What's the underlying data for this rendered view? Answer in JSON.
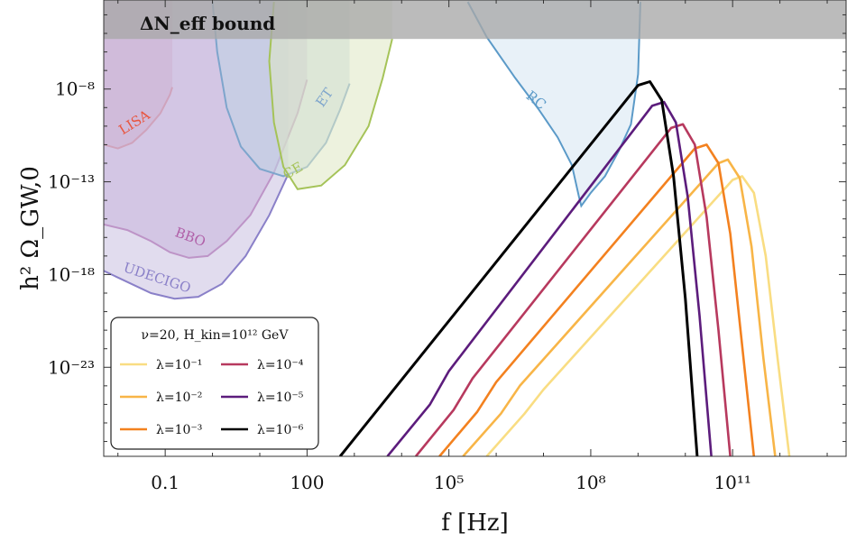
{
  "chart_data": {
    "type": "line",
    "xscale": "log",
    "yscale": "log",
    "xlim_log10": [
      -2.3,
      13.4
    ],
    "ylim_log10": [
      -27.8,
      -3.2
    ],
    "xlabel": "f [Hz]",
    "ylabel": "h² Ω_GW,0",
    "x_ticks": [
      {
        "label": "0.1",
        "log10": -1
      },
      {
        "label": "100",
        "log10": 2
      },
      {
        "label": "10⁵",
        "log10": 5
      },
      {
        "label": "10⁸",
        "log10": 8
      },
      {
        "label": "10¹¹",
        "log10": 11
      }
    ],
    "y_ticks": [
      {
        "label": "10⁻⁸",
        "log10": -8
      },
      {
        "label": "10⁻¹³",
        "log10": -13
      },
      {
        "label": "10⁻¹⁸",
        "log10": -18
      },
      {
        "label": "10⁻²³",
        "log10": -23
      }
    ],
    "band": {
      "label": "ΔN_eff bound",
      "y_log10_min": -5.3,
      "color": "#a8a8a8"
    },
    "sensitivity_regions": [
      {
        "name": "LISA",
        "color": "#e8553f",
        "fill": "#e49aa6",
        "points": [
          [
            -2.3,
            -11.0
          ],
          [
            -2.0,
            -11.2
          ],
          [
            -1.7,
            -10.9
          ],
          [
            -1.4,
            -10.2
          ],
          [
            -1.1,
            -9.3
          ],
          [
            -0.9,
            -8.3
          ],
          [
            -0.85,
            -7.9
          ]
        ]
      },
      {
        "name": "BBO",
        "color": "#b060a8",
        "fill": "#c9a8d6",
        "points": [
          [
            -2.3,
            -15.3
          ],
          [
            -1.8,
            -15.6
          ],
          [
            -1.3,
            -16.2
          ],
          [
            -0.9,
            -16.8
          ],
          [
            -0.5,
            -17.1
          ],
          [
            -0.1,
            -17.0
          ],
          [
            0.3,
            -16.2
          ],
          [
            0.8,
            -14.8
          ],
          [
            1.3,
            -12.5
          ],
          [
            1.8,
            -9.3
          ],
          [
            2.0,
            -7.5
          ]
        ]
      },
      {
        "name": "UDECIGO",
        "color": "#8a80c8",
        "fill": "#c8c0e0",
        "points": [
          [
            -2.3,
            -17.8
          ],
          [
            -1.8,
            -18.4
          ],
          [
            -1.3,
            -19.0
          ],
          [
            -0.8,
            -19.3
          ],
          [
            -0.3,
            -19.2
          ],
          [
            0.2,
            -18.5
          ],
          [
            0.7,
            -17.0
          ],
          [
            1.2,
            -14.8
          ],
          [
            1.6,
            -12.6
          ]
        ]
      },
      {
        "name": "ET",
        "color": "#7ea5cc",
        "fill": "#bfd3e3",
        "points": [
          [
            0.0,
            -3.3
          ],
          [
            0.1,
            -6.0
          ],
          [
            0.3,
            -9.0
          ],
          [
            0.6,
            -11.1
          ],
          [
            1.0,
            -12.3
          ],
          [
            1.5,
            -12.7
          ],
          [
            2.0,
            -12.2
          ],
          [
            2.4,
            -10.9
          ],
          [
            2.7,
            -9.1
          ],
          [
            2.9,
            -7.7
          ]
        ]
      },
      {
        "name": "CE",
        "color": "#a5c358",
        "fill": "#dfe8c2",
        "points": [
          [
            1.3,
            -3.3
          ],
          [
            1.2,
            -6.5
          ],
          [
            1.3,
            -9.8
          ],
          [
            1.5,
            -12.2
          ],
          [
            1.8,
            -13.4
          ],
          [
            2.3,
            -13.2
          ],
          [
            2.8,
            -12.1
          ],
          [
            3.3,
            -10.0
          ],
          [
            3.6,
            -7.4
          ],
          [
            3.8,
            -5.3
          ]
        ]
      }
    ],
    "rc_region": {
      "name": "RC",
      "color": "#5b9ac8",
      "fill": "#d6e6f2",
      "points": [
        [
          5.4,
          -3.3
        ],
        [
          5.8,
          -5.2
        ],
        [
          6.4,
          -7.4
        ],
        [
          6.9,
          -9.1
        ],
        [
          7.3,
          -10.6
        ],
        [
          7.6,
          -12.1
        ],
        [
          7.75,
          -13.8
        ],
        [
          7.8,
          -14.3
        ],
        [
          8.0,
          -13.6
        ],
        [
          8.3,
          -12.7
        ],
        [
          8.6,
          -11.3
        ],
        [
          8.85,
          -9.9
        ],
        [
          9.0,
          -7.2
        ],
        [
          9.05,
          -3.3
        ]
      ]
    },
    "series": [
      {
        "name": "λ=10⁻¹",
        "color": "#f9dd82",
        "points": [
          [
            5.8,
            -27.8
          ],
          [
            6.6,
            -25.5
          ],
          [
            7.0,
            -24.2
          ],
          [
            11.0,
            -12.9
          ],
          [
            11.2,
            -12.7
          ],
          [
            11.45,
            -13.6
          ],
          [
            11.7,
            -17.0
          ],
          [
            11.95,
            -22.5
          ],
          [
            12.2,
            -27.8
          ]
        ]
      },
      {
        "name": "λ=10⁻²",
        "color": "#f8b547",
        "points": [
          [
            5.3,
            -27.8
          ],
          [
            6.1,
            -25.5
          ],
          [
            6.5,
            -24.0
          ],
          [
            10.7,
            -12.0
          ],
          [
            10.9,
            -11.8
          ],
          [
            11.15,
            -12.8
          ],
          [
            11.4,
            -16.5
          ],
          [
            11.65,
            -22.5
          ],
          [
            11.9,
            -27.8
          ]
        ]
      },
      {
        "name": "λ=10⁻³",
        "color": "#f3811f",
        "points": [
          [
            4.8,
            -27.8
          ],
          [
            5.6,
            -25.4
          ],
          [
            6.0,
            -23.8
          ],
          [
            10.2,
            -11.2
          ],
          [
            10.45,
            -11.0
          ],
          [
            10.7,
            -12.0
          ],
          [
            10.95,
            -15.8
          ],
          [
            11.2,
            -21.8
          ],
          [
            11.45,
            -27.8
          ]
        ]
      },
      {
        "name": "λ=10⁻⁴",
        "color": "#b7395e",
        "points": [
          [
            4.3,
            -27.8
          ],
          [
            5.1,
            -25.3
          ],
          [
            5.5,
            -23.6
          ],
          [
            9.7,
            -10.1
          ],
          [
            9.95,
            -9.9
          ],
          [
            10.2,
            -11.0
          ],
          [
            10.45,
            -14.9
          ],
          [
            10.7,
            -21.0
          ],
          [
            10.95,
            -27.8
          ]
        ]
      },
      {
        "name": "λ=10⁻⁵",
        "color": "#5c1c7c",
        "points": [
          [
            3.7,
            -27.8
          ],
          [
            4.6,
            -25.0
          ],
          [
            5.0,
            -23.2
          ],
          [
            9.3,
            -8.9
          ],
          [
            9.55,
            -8.7
          ],
          [
            9.8,
            -9.8
          ],
          [
            10.05,
            -13.8
          ],
          [
            10.3,
            -20.2
          ],
          [
            10.55,
            -27.8
          ]
        ]
      },
      {
        "name": "λ=10⁻⁶",
        "color": "#000000",
        "points": [
          [
            2.7,
            -27.8
          ],
          [
            9.0,
            -7.8
          ],
          [
            9.25,
            -7.6
          ],
          [
            9.5,
            -8.6
          ],
          [
            9.75,
            -12.7
          ],
          [
            10.0,
            -19.3
          ],
          [
            10.25,
            -27.8
          ]
        ]
      }
    ],
    "legend": {
      "title": "ν=20,  H_kin=10¹² GeV",
      "placement": "bottom-left",
      "entries": [
        "λ=10⁻¹",
        "λ=10⁻²",
        "λ=10⁻³",
        "λ=10⁻⁴",
        "λ=10⁻⁵",
        "λ=10⁻⁶"
      ]
    }
  }
}
